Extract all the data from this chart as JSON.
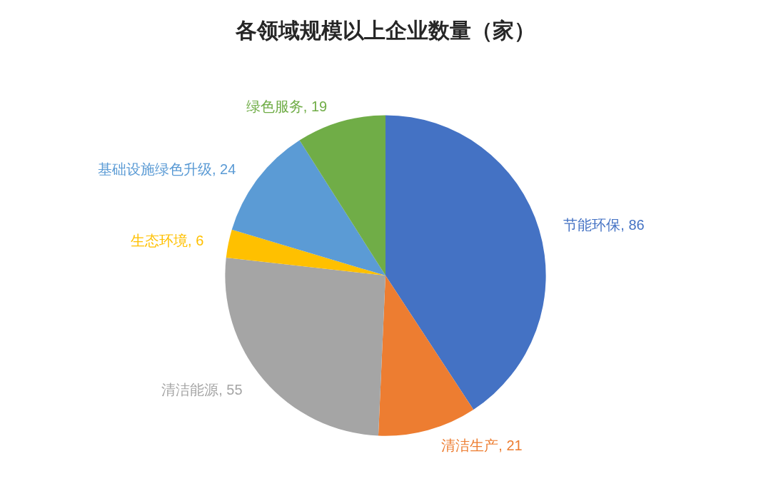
{
  "chart_data": {
    "type": "pie",
    "title": "各领域规模以上企业数量（家）",
    "categories": [
      "节能环保",
      "清洁生产",
      "清洁能源",
      "生态环境",
      "基础设施绿色升级",
      "绿色服务"
    ],
    "values": [
      86,
      21,
      55,
      6,
      24,
      19
    ],
    "value_labels": [
      ", 86",
      ", 21",
      ", 55",
      ", 6",
      ", 24",
      ", 19"
    ],
    "colors": [
      "#4472c4",
      "#ed7d31",
      "#a5a5a5",
      "#ffc000",
      "#5b9bd5",
      "#70ad47"
    ]
  }
}
